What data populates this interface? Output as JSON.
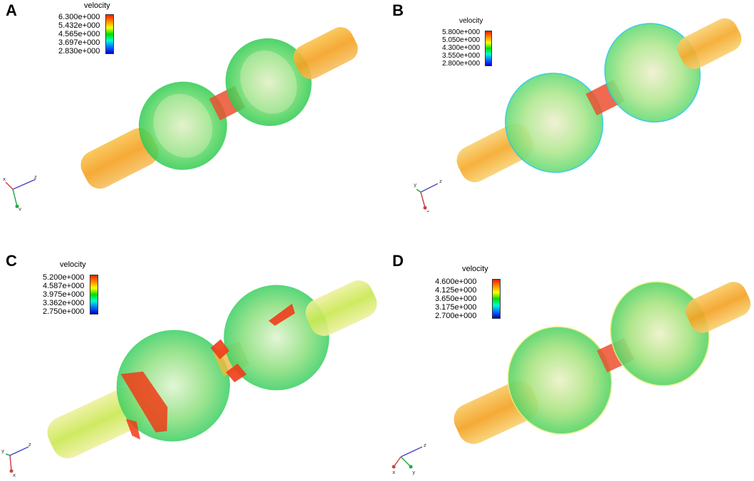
{
  "panels": [
    {
      "letter": "A",
      "legend": {
        "title": "velocity",
        "labels": [
          "6.300e+000",
          "5.432e+000",
          "4.565e+000",
          "3.697e+000",
          "2.830e+000"
        ]
      },
      "axis_letters": [
        "x",
        "y",
        "z"
      ]
    },
    {
      "letter": "B",
      "legend": {
        "title": "velocity",
        "labels": [
          "5.800e+000",
          "5.050e+000",
          "4.300e+000",
          "3.550e+000",
          "2.800e+000"
        ]
      },
      "axis_letters": [
        "x",
        "y",
        "z"
      ]
    },
    {
      "letter": "C",
      "legend": {
        "title": "velocity",
        "labels": [
          "5.200e+000",
          "4.587e+000",
          "3.975e+000",
          "3.362e+000",
          "2.750e+000"
        ]
      },
      "axis_letters": [
        "x",
        "y",
        "z"
      ]
    },
    {
      "letter": "D",
      "legend": {
        "title": "velocity",
        "labels": [
          "4.600e+000",
          "4.125e+000",
          "3.650e+000",
          "3.175e+000",
          "2.700e+000"
        ]
      },
      "axis_letters": [
        "x",
        "y",
        "z"
      ]
    }
  ],
  "colors": {
    "pipe_orange": "#f5a623",
    "throat_red": "#e8402a",
    "chamber_green": "#3cd46a",
    "outline_cyan": "#28c8e6",
    "outline_yellow": "#e8ee7a"
  }
}
